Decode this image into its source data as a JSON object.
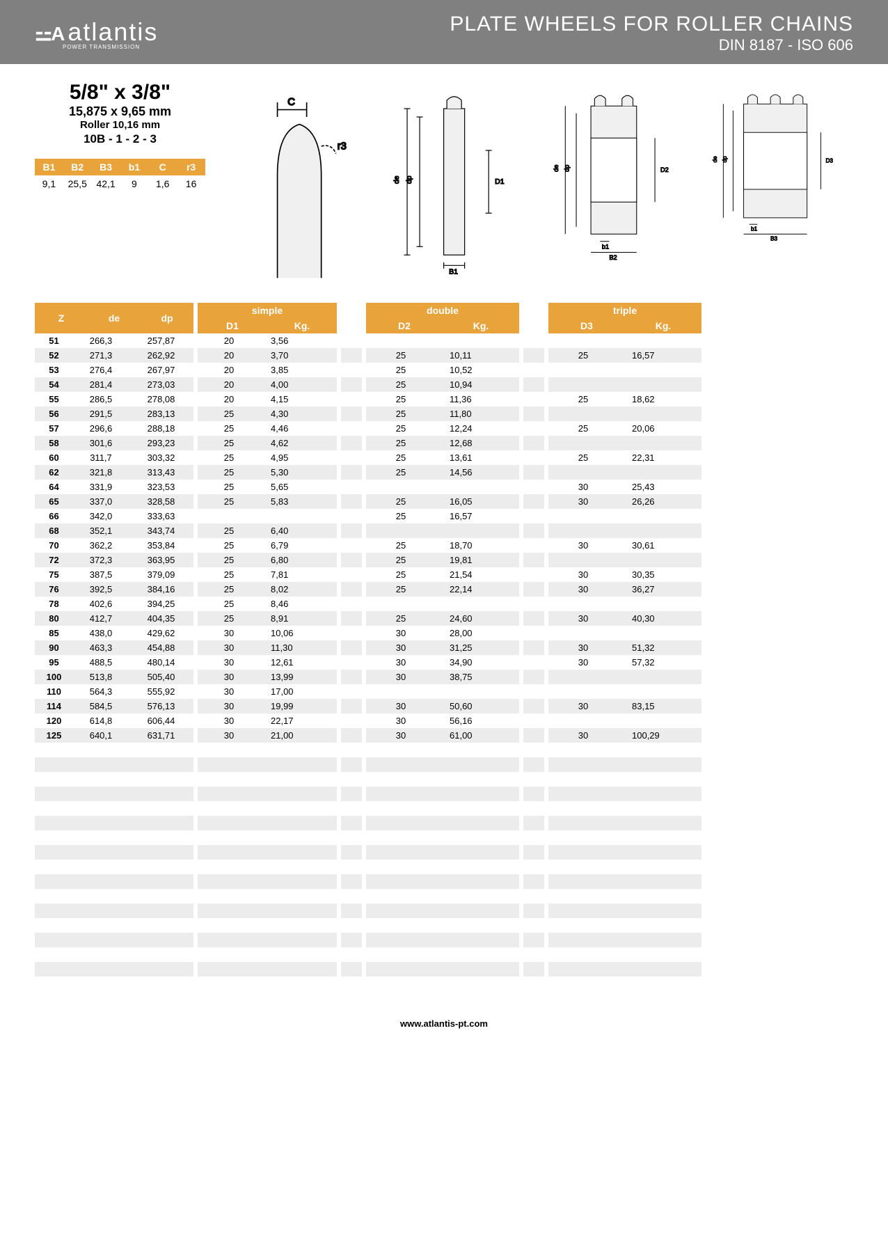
{
  "header": {
    "logo_text": "atlantis",
    "logo_sub": "POWER TRANSMISSION",
    "title_line1": "PLATE WHEELS FOR ROLLER CHAINS",
    "title_line2": "DIN 8187 - ISO 606"
  },
  "spec": {
    "title": "5/8\" x 3/8\"",
    "sub1": "15,875 x 9,65 mm",
    "sub2": "Roller 10,16 mm",
    "sub3": "10B - 1 - 2 - 3"
  },
  "dim_headers": [
    "B1",
    "B2",
    "B3",
    "b1",
    "C",
    "r3"
  ],
  "dim_values": [
    "9,1",
    "25,5",
    "42,1",
    "9",
    "1,6",
    "16"
  ],
  "group_headers": {
    "simple": "simple",
    "double": "double",
    "triple": "triple"
  },
  "col_headers": {
    "z": "Z",
    "de": "de",
    "dp": "dp",
    "d1": "D1",
    "kg": "Kg.",
    "d2": "D2",
    "d3": "D3"
  },
  "rows": [
    {
      "z": "51",
      "de": "266,3",
      "dp": "257,87",
      "d1": "20",
      "kg1": "3,56",
      "d2": "",
      "kg2": "",
      "d3": "",
      "kg3": ""
    },
    {
      "z": "52",
      "de": "271,3",
      "dp": "262,92",
      "d1": "20",
      "kg1": "3,70",
      "d2": "25",
      "kg2": "10,11",
      "d3": "25",
      "kg3": "16,57"
    },
    {
      "z": "53",
      "de": "276,4",
      "dp": "267,97",
      "d1": "20",
      "kg1": "3,85",
      "d2": "25",
      "kg2": "10,52",
      "d3": "",
      "kg3": ""
    },
    {
      "z": "54",
      "de": "281,4",
      "dp": "273,03",
      "d1": "20",
      "kg1": "4,00",
      "d2": "25",
      "kg2": "10,94",
      "d3": "",
      "kg3": ""
    },
    {
      "z": "55",
      "de": "286,5",
      "dp": "278,08",
      "d1": "20",
      "kg1": "4,15",
      "d2": "25",
      "kg2": "11,36",
      "d3": "25",
      "kg3": "18,62"
    },
    {
      "z": "56",
      "de": "291,5",
      "dp": "283,13",
      "d1": "25",
      "kg1": "4,30",
      "d2": "25",
      "kg2": "11,80",
      "d3": "",
      "kg3": ""
    },
    {
      "z": "57",
      "de": "296,6",
      "dp": "288,18",
      "d1": "25",
      "kg1": "4,46",
      "d2": "25",
      "kg2": "12,24",
      "d3": "25",
      "kg3": "20,06"
    },
    {
      "z": "58",
      "de": "301,6",
      "dp": "293,23",
      "d1": "25",
      "kg1": "4,62",
      "d2": "25",
      "kg2": "12,68",
      "d3": "",
      "kg3": ""
    },
    {
      "z": "60",
      "de": "311,7",
      "dp": "303,32",
      "d1": "25",
      "kg1": "4,95",
      "d2": "25",
      "kg2": "13,61",
      "d3": "25",
      "kg3": "22,31"
    },
    {
      "z": "62",
      "de": "321,8",
      "dp": "313,43",
      "d1": "25",
      "kg1": "5,30",
      "d2": "25",
      "kg2": "14,56",
      "d3": "",
      "kg3": ""
    },
    {
      "z": "64",
      "de": "331,9",
      "dp": "323,53",
      "d1": "25",
      "kg1": "5,65",
      "d2": "",
      "kg2": "",
      "d3": "30",
      "kg3": "25,43"
    },
    {
      "z": "65",
      "de": "337,0",
      "dp": "328,58",
      "d1": "25",
      "kg1": "5,83",
      "d2": "25",
      "kg2": "16,05",
      "d3": "30",
      "kg3": "26,26"
    },
    {
      "z": "66",
      "de": "342,0",
      "dp": "333,63",
      "d1": "",
      "kg1": "",
      "d2": "25",
      "kg2": "16,57",
      "d3": "",
      "kg3": ""
    },
    {
      "z": "68",
      "de": "352,1",
      "dp": "343,74",
      "d1": "25",
      "kg1": "6,40",
      "d2": "",
      "kg2": "",
      "d3": "",
      "kg3": ""
    },
    {
      "z": "70",
      "de": "362,2",
      "dp": "353,84",
      "d1": "25",
      "kg1": "6,79",
      "d2": "25",
      "kg2": "18,70",
      "d3": "30",
      "kg3": "30,61"
    },
    {
      "z": "72",
      "de": "372,3",
      "dp": "363,95",
      "d1": "25",
      "kg1": "6,80",
      "d2": "25",
      "kg2": "19,81",
      "d3": "",
      "kg3": ""
    },
    {
      "z": "75",
      "de": "387,5",
      "dp": "379,09",
      "d1": "25",
      "kg1": "7,81",
      "d2": "25",
      "kg2": "21,54",
      "d3": "30",
      "kg3": "30,35"
    },
    {
      "z": "76",
      "de": "392,5",
      "dp": "384,16",
      "d1": "25",
      "kg1": "8,02",
      "d2": "25",
      "kg2": "22,14",
      "d3": "30",
      "kg3": "36,27"
    },
    {
      "z": "78",
      "de": "402,6",
      "dp": "394,25",
      "d1": "25",
      "kg1": "8,46",
      "d2": "",
      "kg2": "",
      "d3": "",
      "kg3": ""
    },
    {
      "z": "80",
      "de": "412,7",
      "dp": "404,35",
      "d1": "25",
      "kg1": "8,91",
      "d2": "25",
      "kg2": "24,60",
      "d3": "30",
      "kg3": "40,30"
    },
    {
      "z": "85",
      "de": "438,0",
      "dp": "429,62",
      "d1": "30",
      "kg1": "10,06",
      "d2": "30",
      "kg2": "28,00",
      "d3": "",
      "kg3": ""
    },
    {
      "z": "90",
      "de": "463,3",
      "dp": "454,88",
      "d1": "30",
      "kg1": "11,30",
      "d2": "30",
      "kg2": "31,25",
      "d3": "30",
      "kg3": "51,32"
    },
    {
      "z": "95",
      "de": "488,5",
      "dp": "480,14",
      "d1": "30",
      "kg1": "12,61",
      "d2": "30",
      "kg2": "34,90",
      "d3": "30",
      "kg3": "57,32"
    },
    {
      "z": "100",
      "de": "513,8",
      "dp": "505,40",
      "d1": "30",
      "kg1": "13,99",
      "d2": "30",
      "kg2": "38,75",
      "d3": "",
      "kg3": ""
    },
    {
      "z": "110",
      "de": "564,3",
      "dp": "555,92",
      "d1": "30",
      "kg1": "17,00",
      "d2": "",
      "kg2": "",
      "d3": "",
      "kg3": ""
    },
    {
      "z": "114",
      "de": "584,5",
      "dp": "576,13",
      "d1": "30",
      "kg1": "19,99",
      "d2": "30",
      "kg2": "50,60",
      "d3": "30",
      "kg3": "83,15"
    },
    {
      "z": "120",
      "de": "614,8",
      "dp": "606,44",
      "d1": "30",
      "kg1": "22,17",
      "d2": "30",
      "kg2": "56,16",
      "d3": "",
      "kg3": ""
    },
    {
      "z": "125",
      "de": "640,1",
      "dp": "631,71",
      "d1": "30",
      "kg1": "21,00",
      "d2": "30",
      "kg2": "61,00",
      "d3": "30",
      "kg3": "100,29"
    }
  ],
  "empty_rows": 16,
  "footer": "www.atlantis-pt.com",
  "colors": {
    "header_bg": "#808080",
    "accent": "#e9a33b",
    "stripe": "#ececec",
    "text": "#000000"
  }
}
